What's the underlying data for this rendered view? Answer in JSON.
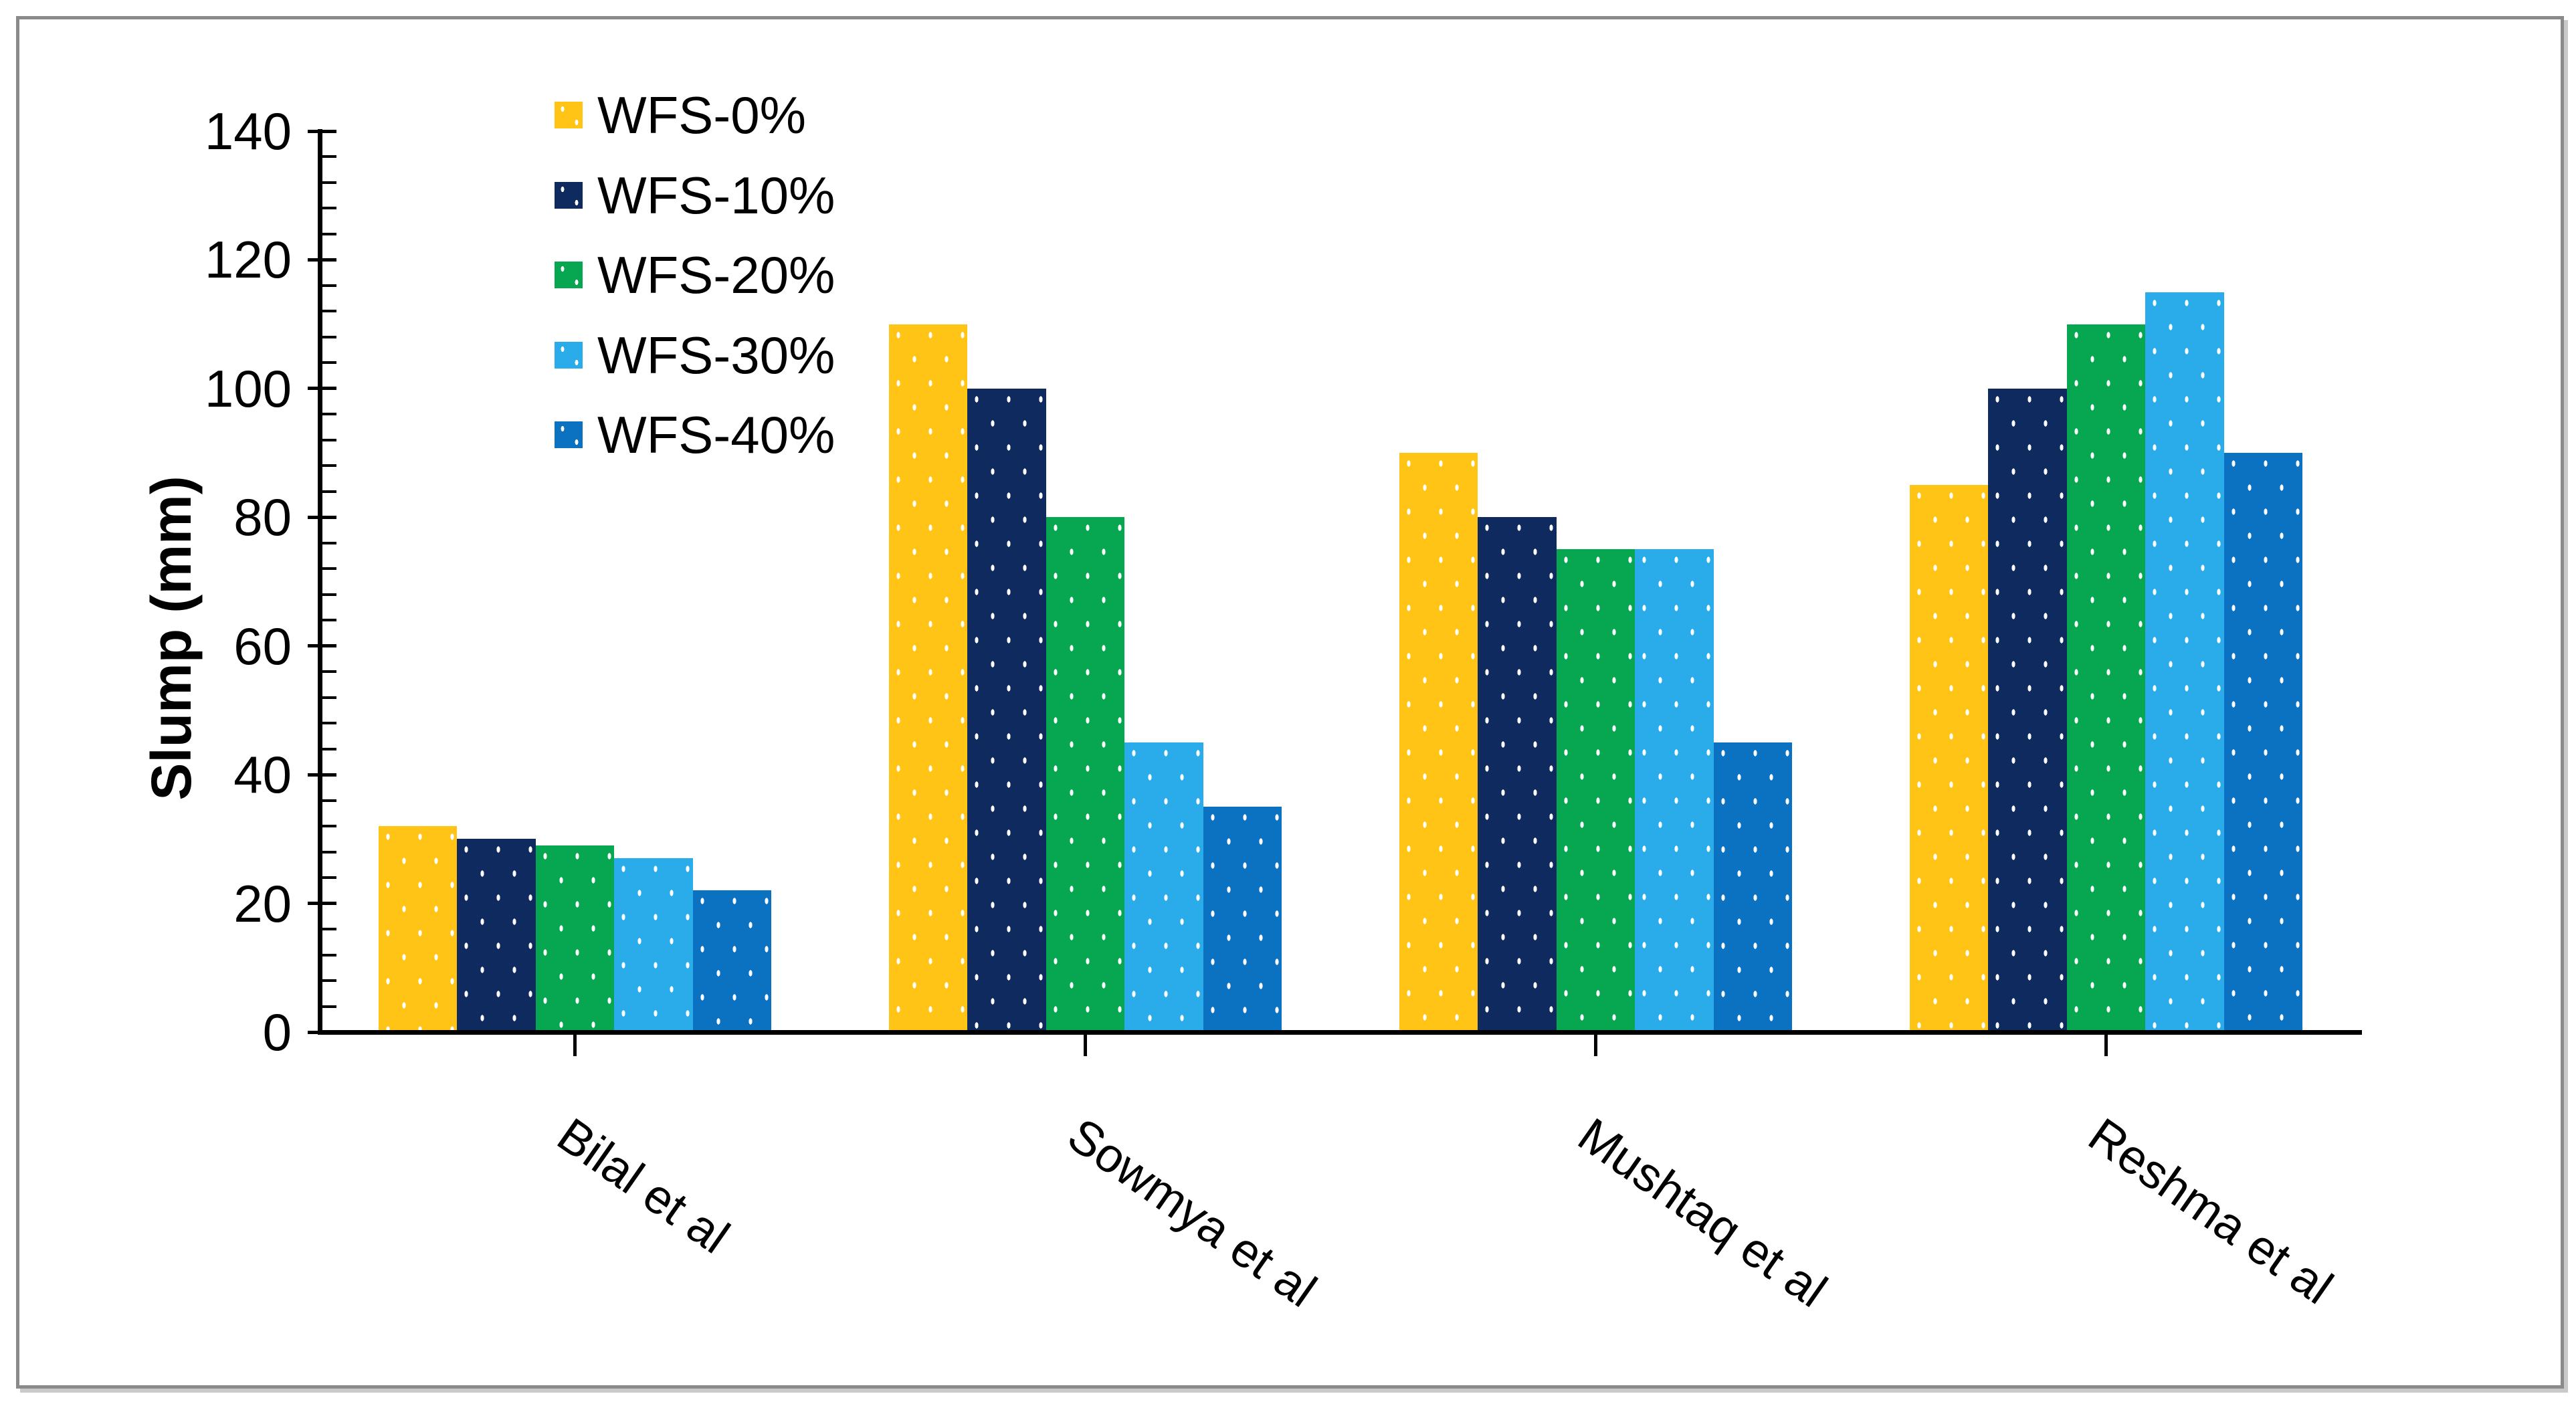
{
  "chart_data": {
    "type": "bar",
    "title": "",
    "ylabel": "Slump (mm)",
    "xlabel": "",
    "categories": [
      "Bilal et al",
      "Sowmya et al",
      "Mushtaq et al",
      "Reshma et al"
    ],
    "series": [
      {
        "name": "WFS-0%",
        "color": "#FFC415",
        "values": [
          32,
          110,
          90,
          85
        ]
      },
      {
        "name": "WFS-10%",
        "color": "#0F2A5F",
        "values": [
          30,
          100,
          80,
          100
        ]
      },
      {
        "name": "WFS-20%",
        "color": "#07A651",
        "values": [
          29,
          80,
          75,
          110
        ]
      },
      {
        "name": "WFS-30%",
        "color": "#29ACE9",
        "values": [
          27,
          45,
          75,
          115
        ]
      },
      {
        "name": "WFS-40%",
        "color": "#0B72C1",
        "values": [
          22,
          35,
          45,
          90
        ]
      }
    ],
    "ylim": [
      0,
      140
    ],
    "yticks": [
      0,
      20,
      40,
      60,
      80,
      100,
      120,
      140
    ],
    "ytick_labels": [
      "0",
      "20",
      "40",
      "60",
      "80",
      "100",
      "120",
      "140"
    ],
    "yminor_step": 4,
    "grid": false,
    "legend_position": "upper-left-inside",
    "bar_pattern": "white-dots",
    "axis_color": "#000000",
    "frame_border_color": "#8a8a8a",
    "background_color": "#ffffff"
  }
}
